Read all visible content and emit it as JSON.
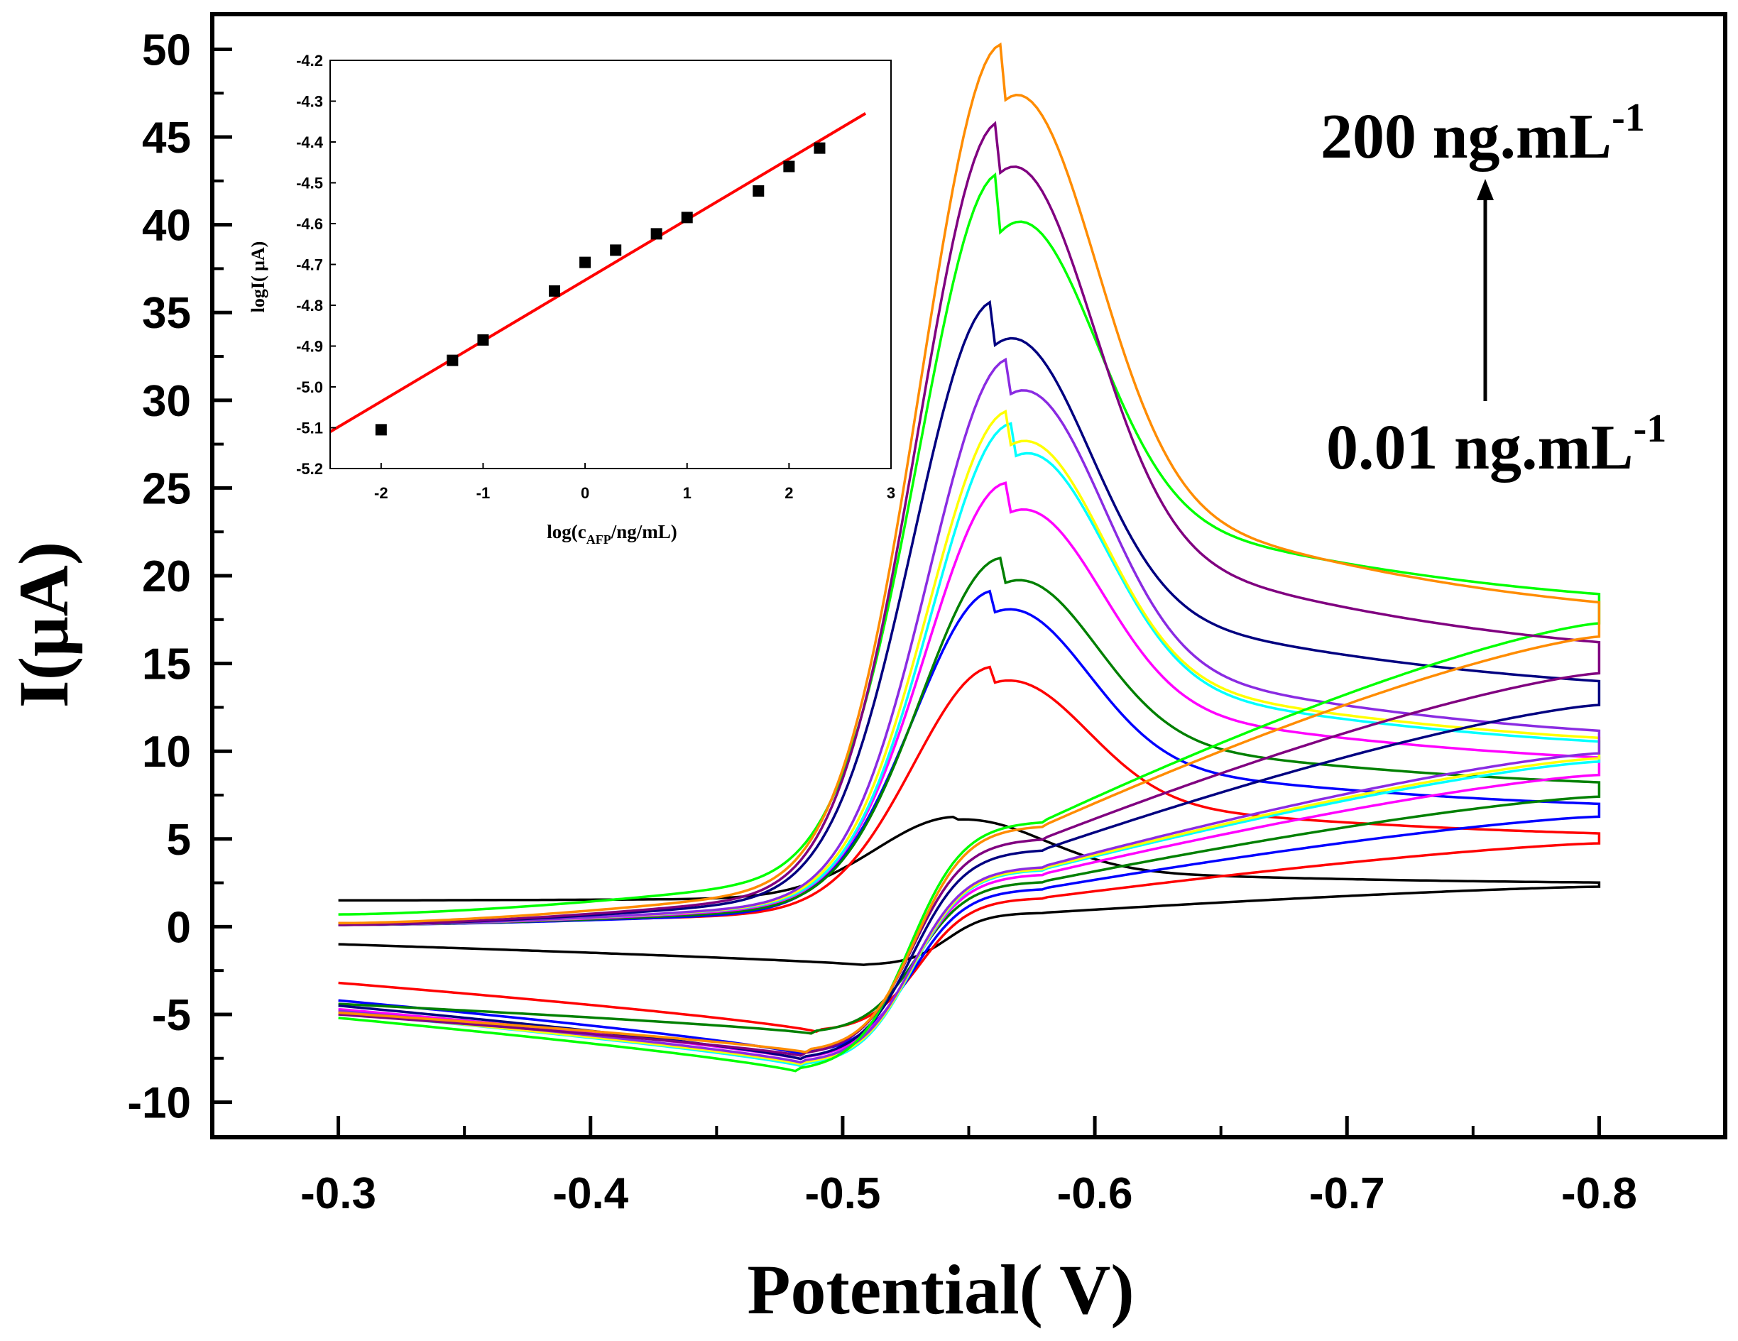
{
  "chart_data": [
    {
      "type": "line",
      "subtype": "cyclic-voltammogram",
      "xlabel": "Potential( V)",
      "ylabel": "I(μA)",
      "xlim": [
        -0.25,
        -0.85
      ],
      "ylim": [
        -12,
        52
      ],
      "xticks": [
        -0.3,
        -0.4,
        -0.5,
        -0.6,
        -0.7,
        -0.8
      ],
      "xtick_labels": [
        "-0.3",
        "-0.4",
        "-0.5",
        "-0.6",
        "-0.7",
        "-0.8"
      ],
      "yticks": [
        -10,
        -5,
        0,
        5,
        10,
        15,
        20,
        25,
        30,
        35,
        40,
        45,
        50
      ],
      "ytick_labels": [
        "-10",
        "-5",
        "0",
        "5",
        "10",
        "15",
        "20",
        "25",
        "30",
        "35",
        "40",
        "45",
        "50"
      ],
      "annotations": {
        "top_label": "200 ng.mL",
        "top_sup": "-1",
        "bottom_label": "0.01 ng.mL",
        "bottom_sup": "-1"
      },
      "series": [
        {
          "color": "#000000",
          "peak_potential": -0.545,
          "peak_current": 6.1,
          "start_current": 1.5,
          "end_current": 2.4,
          "cathodic_min": -2.2,
          "cathodic_potential": -0.51,
          "return_start": -1.0
        },
        {
          "color": "#ff0000",
          "peak_potential": -0.56,
          "peak_current": 13.9,
          "start_current": 0.2,
          "end_current": 5.0,
          "cathodic_min": -6.0,
          "cathodic_potential": -0.49,
          "return_start": -3.2
        },
        {
          "color": "#0000ff",
          "peak_potential": -0.56,
          "peak_current": 17.9,
          "start_current": 0.1,
          "end_current": 6.6,
          "cathodic_min": -7.3,
          "cathodic_potential": -0.485,
          "return_start": -4.2
        },
        {
          "color": "#008000",
          "peak_potential": -0.563,
          "peak_current": 19.5,
          "start_current": 0.1,
          "end_current": 7.8,
          "cathodic_min": -6.1,
          "cathodic_potential": -0.488,
          "return_start": -4.4
        },
        {
          "color": "#ff00ff",
          "peak_potential": -0.565,
          "peak_current": 23.5,
          "start_current": 0.1,
          "end_current": 9.1,
          "cathodic_min": -7.6,
          "cathodic_potential": -0.485,
          "return_start": -4.7
        },
        {
          "color": "#00ffff",
          "peak_potential": -0.567,
          "peak_current": 26.7,
          "start_current": 0.1,
          "end_current": 9.9,
          "cathodic_min": -8.0,
          "cathodic_potential": -0.485,
          "return_start": -4.9
        },
        {
          "color": "#ffff00",
          "peak_potential": -0.566,
          "peak_current": 27.4,
          "start_current": 0.1,
          "end_current": 10.1,
          "cathodic_min": -7.9,
          "cathodic_potential": -0.485,
          "return_start": -4.9
        },
        {
          "color": "#8a2be2",
          "peak_potential": -0.566,
          "peak_current": 30.3,
          "start_current": 0.1,
          "end_current": 10.4,
          "cathodic_min": -7.8,
          "cathodic_potential": -0.485,
          "return_start": -4.8
        },
        {
          "color": "#000080",
          "peak_potential": -0.56,
          "peak_current": 33.1,
          "start_current": 0.1,
          "end_current": 13.3,
          "cathodic_min": -7.6,
          "cathodic_potential": -0.485,
          "return_start": -4.5
        },
        {
          "color": "#00ff00",
          "peak_potential": -0.562,
          "peak_current": 39.5,
          "start_current": 0.7,
          "end_current": 18.2,
          "cathodic_min": -8.3,
          "cathodic_potential": -0.483,
          "return_start": -5.2
        },
        {
          "color": "#800080",
          "peak_potential": -0.562,
          "peak_current": 42.9,
          "start_current": 0.1,
          "end_current": 15.2,
          "cathodic_min": -7.4,
          "cathodic_potential": -0.485,
          "return_start": -5.0
        },
        {
          "color": "#ff8c00",
          "peak_potential": -0.563,
          "peak_current": 46.9,
          "start_current": 0.2,
          "end_current": 17.4,
          "cathodic_min": -7.2,
          "cathodic_potential": -0.487,
          "return_start": -4.9
        }
      ]
    },
    {
      "type": "scatter",
      "title": "",
      "xlabel": "log(c",
      "xlabel_sub": "AFP",
      "xlabel_tail": "/ng/mL)",
      "ylabel": "logI(  μA)",
      "xlim": [
        -2.5,
        3
      ],
      "ylim": [
        -5.2,
        -4.2
      ],
      "xticks": [
        -2,
        -1,
        0,
        1,
        2,
        3
      ],
      "xtick_labels": [
        "-2",
        "-1",
        "0",
        "1",
        "2",
        "3"
      ],
      "yticks": [
        -5.2,
        -5.1,
        -5.0,
        -4.9,
        -4.8,
        -4.7,
        -4.6,
        -4.5,
        -4.4,
        -4.3,
        -4.2
      ],
      "ytick_labels": [
        "-5.2",
        "-5.1",
        "-5.0",
        "-4.9",
        "-4.8",
        "-4.7",
        "-4.6",
        "-4.5",
        "-4.4",
        "-4.3",
        "-4.2"
      ],
      "points": {
        "x": [
          -2,
          -1.3,
          -1,
          -0.3,
          0,
          0.3,
          0.7,
          1,
          1.7,
          2,
          2.3
        ],
        "y": [
          -5.105,
          -4.935,
          -4.885,
          -4.765,
          -4.695,
          -4.665,
          -4.625,
          -4.585,
          -4.52,
          -4.46,
          -4.415
        ]
      },
      "fit_line": {
        "color": "#ff0000",
        "x": [
          -2.5,
          2.75
        ],
        "y": [
          -5.11,
          -4.33
        ]
      }
    }
  ]
}
